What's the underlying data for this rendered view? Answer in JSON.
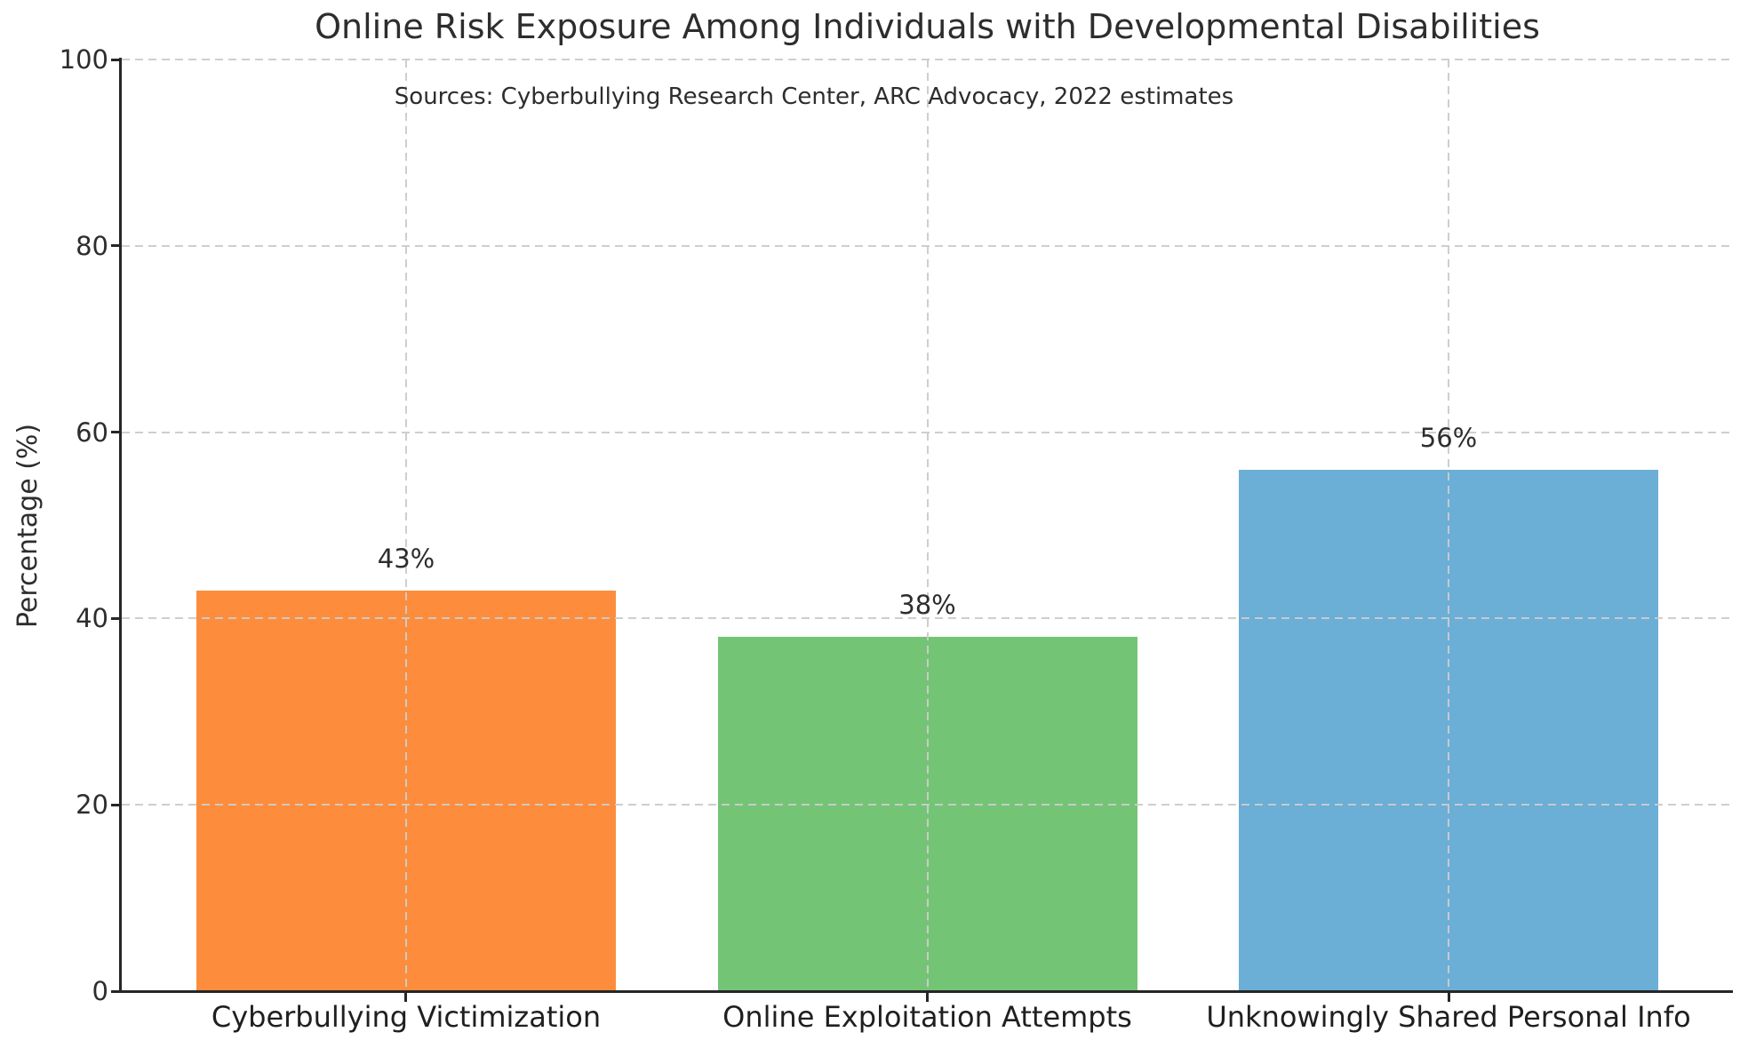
{
  "chart_data": {
    "type": "bar",
    "title": "Online Risk Exposure Among Individuals with Developmental Disabilities",
    "subtitle": "Sources: Cyberbullying Research Center, ARC Advocacy, 2022 estimates",
    "categories": [
      "Cyberbullying Victimization",
      "Online Exploitation Attempts",
      "Unknowingly Shared Personal Info"
    ],
    "values": [
      43,
      38,
      56
    ],
    "value_labels": [
      "43%",
      "38%",
      "56%"
    ],
    "bar_colors": [
      "#FD8D3C",
      "#74C476",
      "#6BAED6"
    ],
    "xlabel": "",
    "ylabel": "Percentage (%)",
    "ylim": [
      0,
      100
    ],
    "yticks": [
      0,
      20,
      40,
      60,
      80,
      100
    ],
    "grid": {
      "style": "dashed",
      "color": "#CCCCCC",
      "horizontal": "at y ticks",
      "vertical": "at bar centers"
    },
    "legend": "none",
    "axis_color": "#262626",
    "text_color": "#2D2D2D",
    "background_color": "#FFFFFF"
  }
}
